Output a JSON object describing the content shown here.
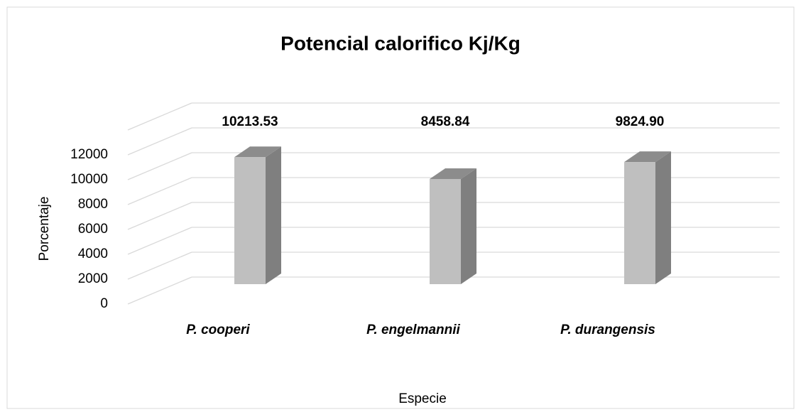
{
  "chart_data": {
    "type": "bar3d",
    "title": "Potencial calorifico Kj/Kg",
    "categories": [
      "P. cooperi",
      "P. engelmannii",
      "P. durangensis"
    ],
    "values": [
      10213.53,
      8458.84,
      9824.9
    ],
    "value_labels": [
      "10213.53",
      "8458.84",
      "9824.90"
    ],
    "color": "#bfbfbf",
    "x_label": "Especie",
    "y_label": "Porcentaje",
    "ylim": [
      0,
      14000
    ],
    "yticks": [
      0,
      2000,
      4000,
      6000,
      8000,
      10000,
      12000
    ],
    "grid": true
  }
}
